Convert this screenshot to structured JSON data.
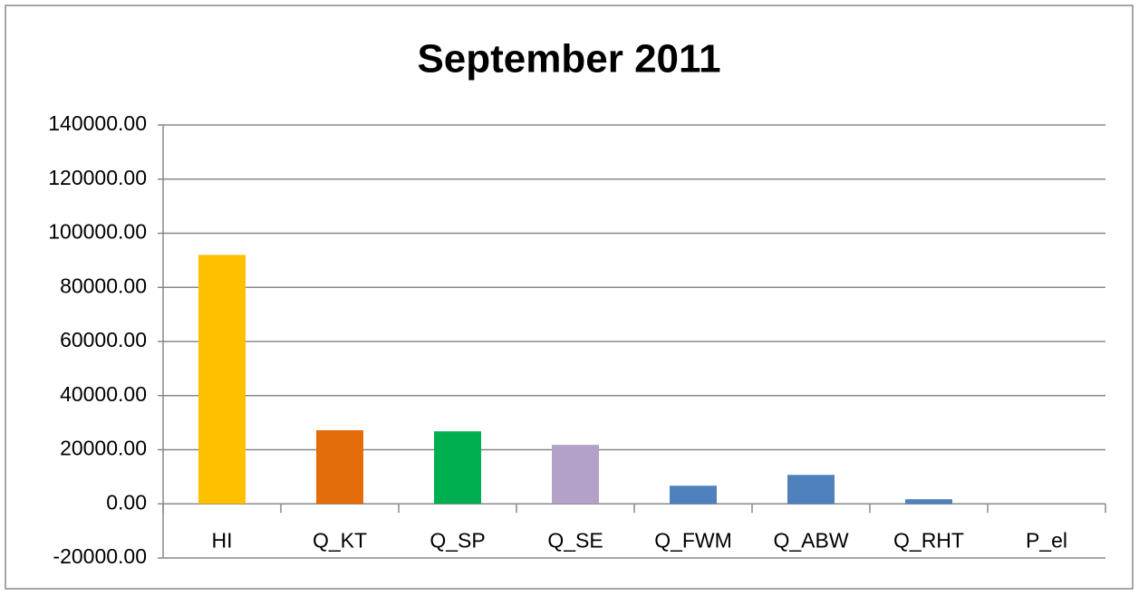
{
  "chart_data": {
    "type": "bar",
    "title": "September 2011",
    "categories": [
      "HI",
      "Q_KT",
      "Q_SP",
      "Q_SE",
      "Q_FWM",
      "Q_ABW",
      "Q_RHT",
      "P_el"
    ],
    "values": [
      92000,
      27200,
      26800,
      21800,
      6700,
      10700,
      1700,
      0
    ],
    "colors": [
      "#ffc000",
      "#e46c0a",
      "#00b050",
      "#b2a2c7",
      "#4f81bd",
      "#4f81bd",
      "#4f81bd",
      "#4f81bd"
    ],
    "ylim": [
      -20000,
      140000
    ],
    "yticks": [
      {
        "value": -20000,
        "label": "-20000.00"
      },
      {
        "value": 0,
        "label": "0.00"
      },
      {
        "value": 20000,
        "label": "20000.00"
      },
      {
        "value": 40000,
        "label": "40000.00"
      },
      {
        "value": 60000,
        "label": "60000.00"
      },
      {
        "value": 80000,
        "label": "80000.00"
      },
      {
        "value": 100000,
        "label": "100000.00"
      },
      {
        "value": 120000,
        "label": "120000.00"
      },
      {
        "value": 140000,
        "label": "140000.00"
      }
    ],
    "grid": true
  }
}
